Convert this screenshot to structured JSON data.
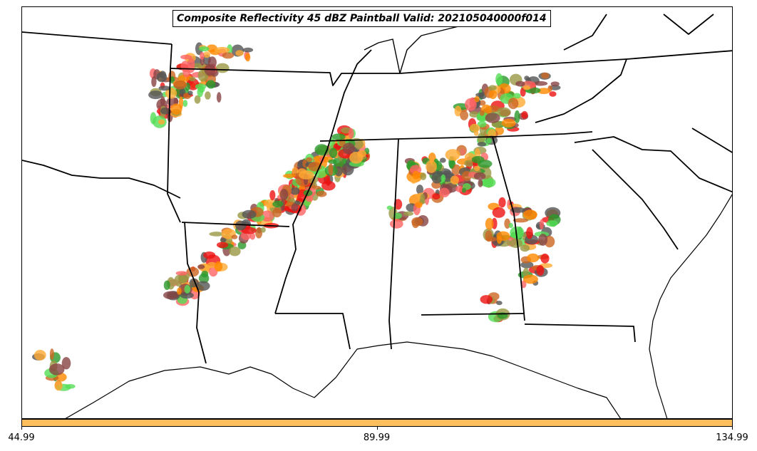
{
  "title": "Composite Reflectivity 45 dBZ Paintball Valid: 202105040000f014",
  "colorbar": {
    "color": "#ffbf5f",
    "ticks": [
      {
        "label": "44.99",
        "value": 44.99
      },
      {
        "label": "89.99",
        "value": 89.99
      },
      {
        "label": "134.99",
        "value": 134.99
      }
    ],
    "range": [
      44.99,
      134.99
    ]
  },
  "member_colors": [
    "#ff6464",
    "#ee1111",
    "#ff8800",
    "#ffaa33",
    "#55dd55",
    "#2a9a2a",
    "#999944",
    "#884444",
    "#555555",
    "#cc6622"
  ]
}
